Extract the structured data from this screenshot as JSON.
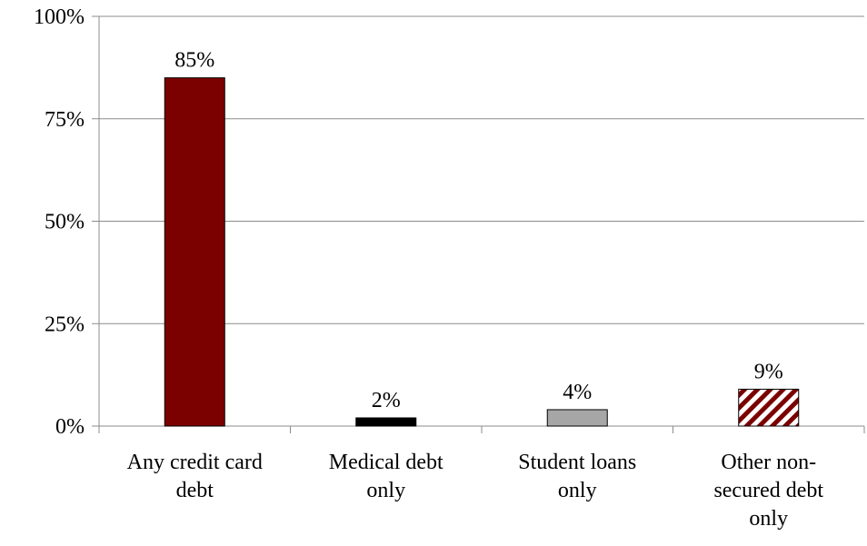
{
  "chart_data": {
    "type": "bar",
    "categories": [
      [
        "Any credit card",
        "debt"
      ],
      [
        "Medical debt",
        "only"
      ],
      [
        "Student loans",
        "only"
      ],
      [
        "Other non-",
        "secured debt",
        "only"
      ]
    ],
    "values": [
      85,
      2,
      4,
      9
    ],
    "data_labels": [
      "85%",
      "2%",
      "4%",
      "9%"
    ],
    "bar_styles": [
      {
        "fill": "#7b0000",
        "pattern": "solid"
      },
      {
        "fill": "#000000",
        "pattern": "solid"
      },
      {
        "fill": "#a6a6a6",
        "pattern": "solid"
      },
      {
        "fill": "#7b0000",
        "pattern": "diagonal-stripes"
      }
    ],
    "ylim": [
      0,
      100
    ],
    "yticks": [
      0,
      25,
      50,
      75,
      100
    ],
    "ytick_labels": [
      "0%",
      "25%",
      "50%",
      "75%",
      "100%"
    ],
    "grid": true,
    "legend": false,
    "title": "",
    "xlabel": "",
    "ylabel": ""
  }
}
